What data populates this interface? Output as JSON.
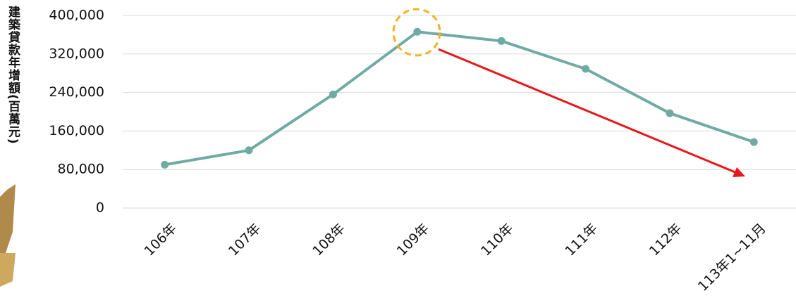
{
  "chart_data": {
    "type": "line",
    "y_label": "建築貸款年增額(百萬元)",
    "categories": [
      "106年",
      "107年",
      "108年",
      "109年",
      "110年",
      "111年",
      "112年",
      "113年1~11月"
    ],
    "series": [
      {
        "name": "建築貸款年增額",
        "color": "#70aba3",
        "values": [
          90000,
          120000,
          236000,
          366000,
          347000,
          289000,
          197000,
          137000
        ]
      }
    ],
    "ylim": [
      0,
      400000
    ],
    "yticks": [
      0,
      {
        "value": 80000,
        "label": "80,000"
      },
      {
        "value": 160000,
        "label": "160,000"
      },
      {
        "value": 240000,
        "label": "240,000"
      },
      {
        "value": 320000,
        "label": "320,000"
      },
      {
        "value": 400000,
        "label": "400,000"
      }
    ],
    "grid": true
  }
}
